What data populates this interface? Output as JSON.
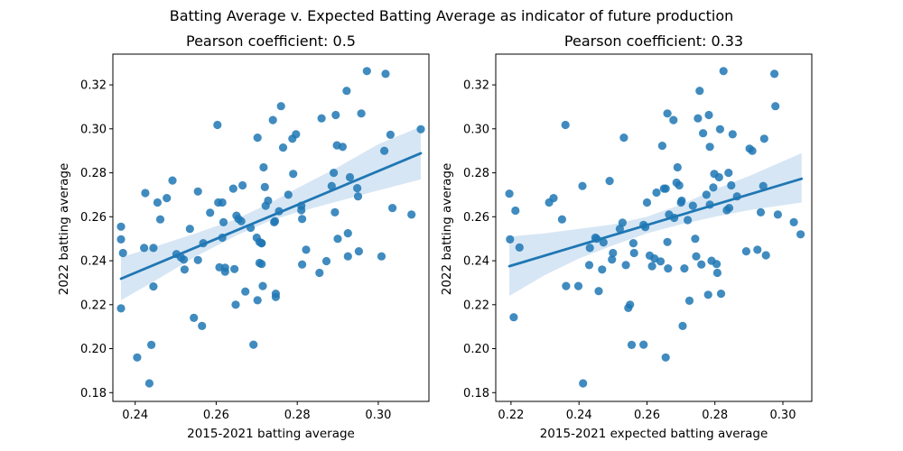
{
  "figure": {
    "suptitle": "Batting Average v. Expected Batting Average as indicator of future production"
  },
  "colors": {
    "points": "#1f77b4",
    "band": "#c6dbef",
    "line": "#1f77b4"
  },
  "chart_data": [
    {
      "type": "scatter",
      "title": "Pearson coefficient: 0.5",
      "xlabel": "2015-2021 batting average",
      "ylabel": "2022 batting average",
      "xlim": [
        0.2345,
        0.3125
      ],
      "ylim": [
        0.176,
        0.334
      ],
      "xticks": [
        0.24,
        0.26,
        0.28,
        0.3
      ],
      "xtick_labels": [
        "0.24",
        "0.26",
        "0.28",
        "0.30"
      ],
      "yticks": [
        0.18,
        0.2,
        0.22,
        0.24,
        0.26,
        0.28,
        0.3,
        0.32
      ],
      "ytick_labels": [
        "0.18",
        "0.20",
        "0.22",
        "0.24",
        "0.26",
        "0.28",
        "0.30",
        "0.32"
      ],
      "regression": {
        "x": [
          0.2365,
          0.3105
        ],
        "y": [
          0.2318,
          0.2889
        ]
      },
      "confidence_band": {
        "x": [
          0.2365,
          0.245,
          0.255,
          0.265,
          0.273,
          0.28,
          0.29,
          0.3,
          0.3105
        ],
        "lower": [
          0.222,
          0.231,
          0.242,
          0.2515,
          0.258,
          0.262,
          0.267,
          0.272,
          0.277
        ],
        "upper": [
          0.2415,
          0.2465,
          0.2525,
          0.259,
          0.266,
          0.273,
          0.2825,
          0.293,
          0.301
        ]
      },
      "points": [
        [
          0.2365,
          0.2555
        ],
        [
          0.2365,
          0.2497
        ],
        [
          0.237,
          0.2435
        ],
        [
          0.2365,
          0.2183
        ],
        [
          0.2405,
          0.196
        ],
        [
          0.2425,
          0.2708
        ],
        [
          0.2422,
          0.2458
        ],
        [
          0.2435,
          0.1842
        ],
        [
          0.244,
          0.2017
        ],
        [
          0.2445,
          0.2458
        ],
        [
          0.2445,
          0.2283
        ],
        [
          0.2455,
          0.2665
        ],
        [
          0.2462,
          0.2588
        ],
        [
          0.2478,
          0.2685
        ],
        [
          0.2492,
          0.2765
        ],
        [
          0.2502,
          0.243
        ],
        [
          0.2513,
          0.2415
        ],
        [
          0.252,
          0.2405
        ],
        [
          0.2522,
          0.236
        ],
        [
          0.2535,
          0.2545
        ],
        [
          0.2545,
          0.214
        ],
        [
          0.2555,
          0.2715
        ],
        [
          0.2555,
          0.2403
        ],
        [
          0.2565,
          0.2103
        ],
        [
          0.2568,
          0.248
        ],
        [
          0.2585,
          0.2618
        ],
        [
          0.2603,
          0.3018
        ],
        [
          0.2605,
          0.2665
        ],
        [
          0.2608,
          0.237
        ],
        [
          0.2615,
          0.2665
        ],
        [
          0.2615,
          0.2505
        ],
        [
          0.2618,
          0.2575
        ],
        [
          0.2622,
          0.2368
        ],
        [
          0.2622,
          0.235
        ],
        [
          0.2642,
          0.2728
        ],
        [
          0.2645,
          0.2362
        ],
        [
          0.2648,
          0.22
        ],
        [
          0.265,
          0.2605
        ],
        [
          0.2655,
          0.259
        ],
        [
          0.2662,
          0.258
        ],
        [
          0.2665,
          0.2743
        ],
        [
          0.2672,
          0.226
        ],
        [
          0.2685,
          0.255
        ],
        [
          0.2692,
          0.2018
        ],
        [
          0.27,
          0.2505
        ],
        [
          0.2702,
          0.296
        ],
        [
          0.2702,
          0.222
        ],
        [
          0.2707,
          0.239
        ],
        [
          0.2707,
          0.2485
        ],
        [
          0.2712,
          0.2385
        ],
        [
          0.2712,
          0.248
        ],
        [
          0.2712,
          0.248
        ],
        [
          0.2715,
          0.2285
        ],
        [
          0.2717,
          0.2825
        ],
        [
          0.272,
          0.2735
        ],
        [
          0.2722,
          0.265
        ],
        [
          0.2728,
          0.2673
        ],
        [
          0.274,
          0.304
        ],
        [
          0.2743,
          0.2575
        ],
        [
          0.2745,
          0.258
        ],
        [
          0.2747,
          0.2235
        ],
        [
          0.2747,
          0.225
        ],
        [
          0.2755,
          0.2625
        ],
        [
          0.276,
          0.3103
        ],
        [
          0.2765,
          0.2915
        ],
        [
          0.2778,
          0.27
        ],
        [
          0.2788,
          0.2955
        ],
        [
          0.279,
          0.2795
        ],
        [
          0.2797,
          0.2975
        ],
        [
          0.281,
          0.265
        ],
        [
          0.281,
          0.263
        ],
        [
          0.2812,
          0.259
        ],
        [
          0.2812,
          0.2383
        ],
        [
          0.2822,
          0.245
        ],
        [
          0.2855,
          0.2345
        ],
        [
          0.286,
          0.3048
        ],
        [
          0.2872,
          0.2398
        ],
        [
          0.2885,
          0.274
        ],
        [
          0.289,
          0.28
        ],
        [
          0.2893,
          0.262
        ],
        [
          0.2895,
          0.3063
        ],
        [
          0.2898,
          0.2925
        ],
        [
          0.29,
          0.25
        ],
        [
          0.2912,
          0.2918
        ],
        [
          0.2922,
          0.3173
        ],
        [
          0.2925,
          0.242
        ],
        [
          0.2925,
          0.2525
        ],
        [
          0.293,
          0.278
        ],
        [
          0.2948,
          0.273
        ],
        [
          0.295,
          0.2693
        ],
        [
          0.2952,
          0.2443
        ],
        [
          0.2958,
          0.307
        ],
        [
          0.2972,
          0.3263
        ],
        [
          0.3008,
          0.242
        ],
        [
          0.3015,
          0.29
        ],
        [
          0.3018,
          0.325
        ],
        [
          0.303,
          0.2973
        ],
        [
          0.3035,
          0.264
        ],
        [
          0.3082,
          0.261
        ],
        [
          0.3105,
          0.2998
        ]
      ]
    },
    {
      "type": "scatter",
      "title": "Pearson coefficient: 0.33",
      "xlabel": "2015-2021 expected batting average",
      "ylabel": "2022 batting average",
      "xlim": [
        0.2155,
        0.3085
      ],
      "ylim": [
        0.176,
        0.334
      ],
      "xticks": [
        0.22,
        0.24,
        0.26,
        0.28,
        0.3
      ],
      "xtick_labels": [
        "0.22",
        "0.24",
        "0.26",
        "0.28",
        "0.30"
      ],
      "yticks": [
        0.18,
        0.2,
        0.22,
        0.24,
        0.26,
        0.28,
        0.3,
        0.32
      ],
      "ytick_labels": [
        "0.18",
        "0.20",
        "0.22",
        "0.24",
        "0.26",
        "0.28",
        "0.30",
        "0.32"
      ],
      "regression": {
        "x": [
          0.2195,
          0.3055
        ],
        "y": [
          0.2375,
          0.2773
        ]
      },
      "confidence_band": {
        "x": [
          0.2195,
          0.23,
          0.24,
          0.25,
          0.26,
          0.27,
          0.28,
          0.29,
          0.3055
        ],
        "lower": [
          0.224,
          0.2335,
          0.241,
          0.247,
          0.2525,
          0.2565,
          0.26,
          0.263,
          0.2665
        ],
        "upper": [
          0.251,
          0.2525,
          0.2545,
          0.2565,
          0.26,
          0.2655,
          0.2725,
          0.2785,
          0.289
        ]
      },
      "points": [
        [
          0.2195,
          0.2705
        ],
        [
          0.2197,
          0.2497
        ],
        [
          0.2208,
          0.2143
        ],
        [
          0.2213,
          0.2628
        ],
        [
          0.2225,
          0.246
        ],
        [
          0.2312,
          0.2665
        ],
        [
          0.2325,
          0.2685
        ],
        [
          0.235,
          0.2588
        ],
        [
          0.236,
          0.3018
        ],
        [
          0.2362,
          0.2285
        ],
        [
          0.2398,
          0.2285
        ],
        [
          0.241,
          0.274
        ],
        [
          0.2412,
          0.1842
        ],
        [
          0.243,
          0.238
        ],
        [
          0.2432,
          0.2458
        ],
        [
          0.2448,
          0.2505
        ],
        [
          0.2452,
          0.25
        ],
        [
          0.2458,
          0.2262
        ],
        [
          0.2468,
          0.236
        ],
        [
          0.2472,
          0.2483
        ],
        [
          0.249,
          0.2763
        ],
        [
          0.2497,
          0.2405
        ],
        [
          0.25,
          0.2435
        ],
        [
          0.252,
          0.2545
        ],
        [
          0.2528,
          0.2573
        ],
        [
          0.2532,
          0.296
        ],
        [
          0.2538,
          0.238
        ],
        [
          0.2545,
          0.2185
        ],
        [
          0.255,
          0.22
        ],
        [
          0.2555,
          0.2017
        ],
        [
          0.256,
          0.248
        ],
        [
          0.2562,
          0.2435
        ],
        [
          0.259,
          0.2018
        ],
        [
          0.259,
          0.2563
        ],
        [
          0.2595,
          0.2553
        ],
        [
          0.26,
          0.2665
        ],
        [
          0.2608,
          0.2423
        ],
        [
          0.2615,
          0.2375
        ],
        [
          0.2622,
          0.241
        ],
        [
          0.2628,
          0.271
        ],
        [
          0.264,
          0.2397
        ],
        [
          0.2645,
          0.2923
        ],
        [
          0.265,
          0.2728
        ],
        [
          0.2655,
          0.2728
        ],
        [
          0.2655,
          0.196
        ],
        [
          0.266,
          0.307
        ],
        [
          0.266,
          0.2485
        ],
        [
          0.2662,
          0.2365
        ],
        [
          0.2665,
          0.261
        ],
        [
          0.2678,
          0.304
        ],
        [
          0.268,
          0.2595
        ],
        [
          0.2687,
          0.2755
        ],
        [
          0.269,
          0.2825
        ],
        [
          0.2695,
          0.2743
        ],
        [
          0.27,
          0.2665
        ],
        [
          0.2702,
          0.2673
        ],
        [
          0.2705,
          0.2103
        ],
        [
          0.271,
          0.2365
        ],
        [
          0.272,
          0.2585
        ],
        [
          0.2725,
          0.2218
        ],
        [
          0.2735,
          0.265
        ],
        [
          0.2742,
          0.25
        ],
        [
          0.2745,
          0.242
        ],
        [
          0.275,
          0.3048
        ],
        [
          0.2755,
          0.3173
        ],
        [
          0.276,
          0.2383
        ],
        [
          0.2765,
          0.298
        ],
        [
          0.2775,
          0.27
        ],
        [
          0.278,
          0.2245
        ],
        [
          0.2782,
          0.3063
        ],
        [
          0.2785,
          0.2655
        ],
        [
          0.2785,
          0.2918
        ],
        [
          0.279,
          0.24
        ],
        [
          0.2795,
          0.2733
        ],
        [
          0.2798,
          0.2795
        ],
        [
          0.2805,
          0.2385
        ],
        [
          0.2807,
          0.2345
        ],
        [
          0.2812,
          0.278
        ],
        [
          0.2815,
          0.2998
        ],
        [
          0.2818,
          0.225
        ],
        [
          0.2825,
          0.3263
        ],
        [
          0.2835,
          0.263
        ],
        [
          0.284,
          0.28
        ],
        [
          0.2842,
          0.264
        ],
        [
          0.2848,
          0.2743
        ],
        [
          0.2852,
          0.2975
        ],
        [
          0.2865,
          0.2693
        ],
        [
          0.2892,
          0.2443
        ],
        [
          0.2902,
          0.291
        ],
        [
          0.291,
          0.29
        ],
        [
          0.2925,
          0.245
        ],
        [
          0.2935,
          0.262
        ],
        [
          0.2942,
          0.274
        ],
        [
          0.2945,
          0.2955
        ],
        [
          0.295,
          0.2425
        ],
        [
          0.2975,
          0.325
        ],
        [
          0.2978,
          0.3103
        ],
        [
          0.2985,
          0.261
        ],
        [
          0.3032,
          0.2575
        ],
        [
          0.3052,
          0.252
        ]
      ]
    }
  ]
}
